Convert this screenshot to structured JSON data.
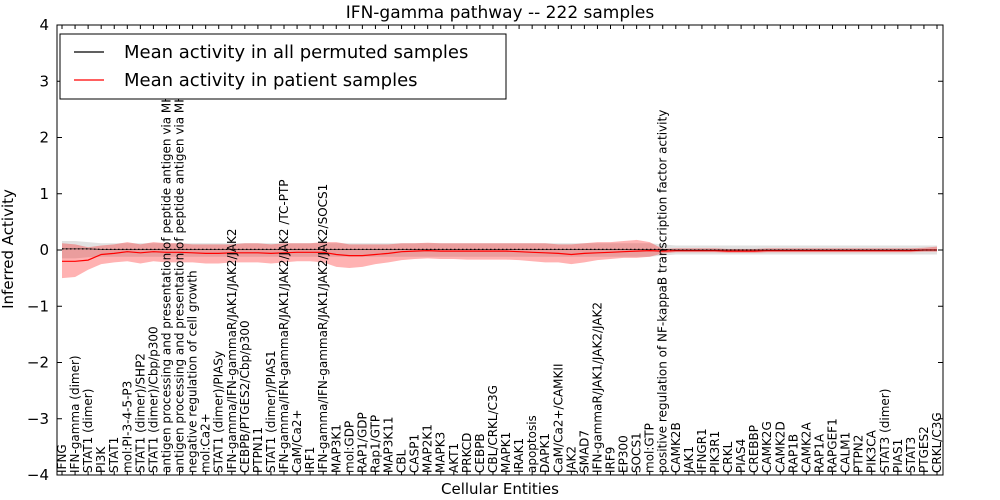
{
  "chart_data": {
    "type": "line",
    "title": "IFN-gamma pathway -- 222 samples",
    "xlabel": "Cellular Entities",
    "ylabel": "Inferred Activity",
    "ylim": [
      -4,
      4
    ],
    "yticks": [
      -4,
      -3,
      -2,
      -1,
      0,
      1,
      2,
      3,
      4
    ],
    "grid": false,
    "legend_position": "top-left",
    "categories": [
      "IFNG",
      "IFN-gamma (dimer)",
      "STAT1 (dimer)",
      "PI3K",
      "STAT1",
      "mol:PI-3-4-5-P3",
      "STAT1 (dimer)/SHP2",
      "STAT1 (dimer)/Cbp/p300",
      "antigen processing and presentation of peptide antigen via MHC class I",
      "antigen processing and presentation of peptide antigen via MHC class II",
      "negative regulation of cell growth",
      "mol:Ca2+",
      "STAT1 (dimer)/PIASy",
      "IFN-gamma/IFN-gammaR/JAK1/JAK2/JAK2",
      "CEBPB/PTGES2/Cbp/p300",
      "PTPN11",
      "STAT1 (dimer)/PIAS1",
      "IFN-gamma/IFN-gammaR/JAK1/JAK2/JAK2 /TC-PTP",
      "CaM/Ca2+",
      "IRF1",
      "IFN-gamma/IFN-gammaR/JAK1/JAK2/JAK2/SOCS1",
      "MAP3K1",
      "mol:GDP",
      "RAP1/GDP",
      "Rap1/GTP",
      "MAP3K11",
      "CBL",
      "CASP1",
      "MAP2K1",
      "MAPK3",
      "AKT1",
      "PRKCD",
      "CEBPB",
      "CBL/CRKL/C3G",
      "MAPK1",
      "IRAK1",
      "apoptosis",
      "DAPK1",
      "CaM/Ca2+/CAMKII",
      "JAK2",
      "SMAD7",
      "IFN-gammaR/JAK1/JAK2/JAK2",
      "IRF9",
      "EP300",
      "SOCS1",
      "mol:GTP",
      "positive regulation of NF-kappaB transcription factor activity",
      "CAMK2B",
      "JAK1",
      "IFNGR1",
      "PIK3R1",
      "CRKL",
      "PIAS4",
      "CREBBP",
      "CAMK2G",
      "CAMK2D",
      "RAP1B",
      "CAMK2A",
      "RAP1A",
      "RAPGEF1",
      "CALM1",
      "PTPN2",
      "PIK3CA",
      "STAT3 (dimer)",
      "PIAS1",
      "STAT3",
      "PTGES2",
      "CRKL/C3G"
    ],
    "series": [
      {
        "name": "Mean activity in all permuted samples",
        "color": "#000000",
        "values": [
          0.02,
          0.02,
          0.02,
          0.01,
          0.01,
          0.01,
          0.01,
          0.01,
          0.01,
          0.01,
          0.01,
          0.01,
          0.01,
          0.01,
          0.01,
          0.01,
          0.01,
          0.01,
          0.01,
          0.01,
          0.01,
          0.01,
          0.01,
          0.01,
          0.01,
          0.01,
          0.01,
          0.01,
          0.01,
          0.01,
          0.01,
          0.01,
          0.01,
          0.01,
          0.01,
          0.01,
          0.01,
          0.01,
          0.01,
          0.01,
          0.01,
          0.01,
          0.01,
          0.01,
          0.01,
          0.01,
          0.01,
          0.0,
          0.0,
          0.0,
          0.0,
          0.0,
          0.0,
          0.0,
          0.0,
          0.0,
          0.0,
          0.0,
          0.0,
          0.0,
          0.0,
          0.0,
          0.0,
          0.0,
          0.0,
          0.0,
          0.0,
          0.0
        ],
        "band_low": [
          -0.15,
          -0.15,
          -0.13,
          -0.12,
          -0.12,
          -0.12,
          -0.12,
          -0.12,
          -0.12,
          -0.12,
          -0.12,
          -0.12,
          -0.12,
          -0.12,
          -0.12,
          -0.12,
          -0.12,
          -0.12,
          -0.12,
          -0.12,
          -0.12,
          -0.12,
          -0.12,
          -0.12,
          -0.12,
          -0.12,
          -0.12,
          -0.12,
          -0.12,
          -0.12,
          -0.12,
          -0.12,
          -0.12,
          -0.12,
          -0.12,
          -0.12,
          -0.12,
          -0.12,
          -0.12,
          -0.12,
          -0.12,
          -0.12,
          -0.12,
          -0.12,
          -0.12,
          -0.12,
          -0.1,
          -0.08,
          -0.08,
          -0.08,
          -0.08,
          -0.08,
          -0.08,
          -0.08,
          -0.08,
          -0.08,
          -0.08,
          -0.08,
          -0.08,
          -0.08,
          -0.08,
          -0.08,
          -0.08,
          -0.08,
          -0.08,
          -0.08,
          -0.08,
          -0.08
        ],
        "band_high": [
          0.16,
          0.16,
          0.14,
          0.12,
          0.12,
          0.12,
          0.12,
          0.12,
          0.12,
          0.12,
          0.12,
          0.12,
          0.12,
          0.12,
          0.12,
          0.12,
          0.12,
          0.12,
          0.12,
          0.12,
          0.12,
          0.12,
          0.12,
          0.12,
          0.12,
          0.12,
          0.12,
          0.12,
          0.12,
          0.12,
          0.12,
          0.12,
          0.12,
          0.12,
          0.12,
          0.12,
          0.12,
          0.12,
          0.12,
          0.12,
          0.12,
          0.12,
          0.12,
          0.12,
          0.12,
          0.12,
          0.1,
          0.08,
          0.08,
          0.08,
          0.08,
          0.08,
          0.08,
          0.08,
          0.08,
          0.08,
          0.08,
          0.08,
          0.08,
          0.08,
          0.08,
          0.08,
          0.08,
          0.08,
          0.08,
          0.08,
          0.08,
          0.08
        ]
      },
      {
        "name": "Mean activity in patient samples",
        "color": "#ff0000",
        "values": [
          -0.2,
          -0.2,
          -0.18,
          -0.08,
          -0.06,
          -0.03,
          -0.05,
          -0.03,
          -0.04,
          -0.04,
          -0.05,
          -0.06,
          -0.06,
          -0.05,
          -0.05,
          -0.05,
          -0.06,
          -0.05,
          -0.04,
          -0.04,
          -0.04,
          -0.08,
          -0.1,
          -0.1,
          -0.08,
          -0.06,
          -0.03,
          -0.02,
          -0.01,
          -0.02,
          -0.02,
          -0.02,
          -0.02,
          -0.02,
          -0.02,
          -0.03,
          -0.04,
          -0.05,
          -0.06,
          -0.08,
          -0.06,
          -0.05,
          -0.04,
          -0.03,
          -0.02,
          -0.01,
          -0.02,
          -0.01,
          -0.01,
          -0.01,
          -0.01,
          -0.02,
          -0.02,
          -0.02,
          -0.01,
          -0.01,
          -0.01,
          -0.01,
          -0.01,
          -0.01,
          -0.01,
          -0.01,
          -0.01,
          -0.01,
          -0.01,
          -0.01,
          0.0,
          0.0
        ],
        "band_low": [
          -0.5,
          -0.48,
          -0.35,
          -0.25,
          -0.22,
          -0.2,
          -0.24,
          -0.2,
          -0.22,
          -0.22,
          -0.22,
          -0.24,
          -0.24,
          -0.22,
          -0.22,
          -0.22,
          -0.24,
          -0.22,
          -0.2,
          -0.2,
          -0.22,
          -0.3,
          -0.32,
          -0.3,
          -0.25,
          -0.22,
          -0.18,
          -0.16,
          -0.15,
          -0.16,
          -0.16,
          -0.17,
          -0.17,
          -0.17,
          -0.17,
          -0.18,
          -0.2,
          -0.22,
          -0.22,
          -0.25,
          -0.22,
          -0.18,
          -0.16,
          -0.14,
          -0.14,
          -0.12,
          -0.06,
          -0.04,
          -0.04,
          -0.04,
          -0.04,
          -0.05,
          -0.05,
          -0.05,
          -0.04,
          -0.04,
          -0.04,
          -0.04,
          -0.04,
          -0.04,
          -0.04,
          -0.04,
          -0.04,
          -0.04,
          -0.04,
          -0.04,
          -0.03,
          -0.03
        ],
        "band_high": [
          0.12,
          0.1,
          0.05,
          0.08,
          0.1,
          0.14,
          0.1,
          0.14,
          0.12,
          0.12,
          0.1,
          0.1,
          0.1,
          0.1,
          0.12,
          0.12,
          0.1,
          0.12,
          0.12,
          0.12,
          0.14,
          0.14,
          0.1,
          0.1,
          0.1,
          0.1,
          0.12,
          0.12,
          0.13,
          0.12,
          0.12,
          0.12,
          0.12,
          0.12,
          0.12,
          0.12,
          0.12,
          0.12,
          0.1,
          0.1,
          0.12,
          0.14,
          0.14,
          0.16,
          0.18,
          0.14,
          0.02,
          0.03,
          0.03,
          0.03,
          0.03,
          0.02,
          0.02,
          0.02,
          0.03,
          0.03,
          0.03,
          0.03,
          0.03,
          0.03,
          0.03,
          0.03,
          0.03,
          0.03,
          0.03,
          0.03,
          0.04,
          0.06
        ]
      }
    ]
  }
}
